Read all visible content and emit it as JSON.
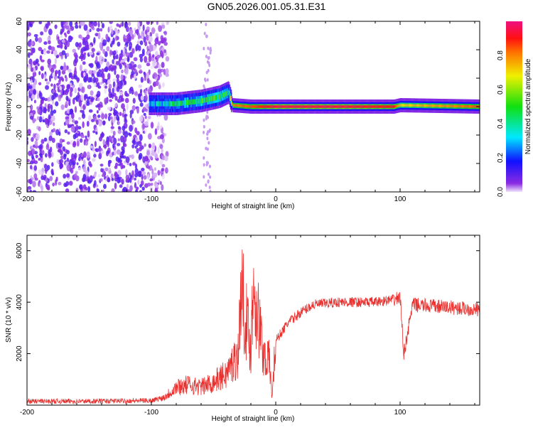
{
  "title": "GN05.2026.001.05.31.E31",
  "chart_data": [
    {
      "type": "heatmap",
      "title": "GN05.2026.001.05.31.E31",
      "xlabel": "Height of straight line (km)",
      "ylabel": "Frequency (Hz)",
      "xlim": [
        -200,
        164
      ],
      "ylim": [
        -60,
        60
      ],
      "xticks": [
        "-200",
        "-100",
        "0",
        "100"
      ],
      "yticks": [
        "-60",
        "-40",
        "-20",
        "0",
        "20",
        "40",
        "60"
      ],
      "colorbar": {
        "label": "Normalized spectral amplitude",
        "range": [
          0,
          1
        ],
        "ticks": [
          "0.0",
          "0.2",
          "0.4",
          "0.6",
          "0.8"
        ]
      },
      "noise_region_x": [
        -200,
        -95
      ],
      "ridge": {
        "x": [
          -100,
          -80,
          -60,
          -45,
          -38,
          -35,
          -20,
          0,
          50,
          95,
          100,
          164
        ],
        "freq_hz": [
          2,
          2,
          4,
          7,
          10,
          1,
          0,
          0,
          0,
          0,
          1,
          0
        ],
        "amplitude": [
          0.3,
          0.4,
          0.45,
          0.5,
          0.4,
          0.8,
          0.85,
          0.95,
          0.95,
          0.9,
          0.7,
          0.85
        ]
      }
    },
    {
      "type": "line",
      "xlabel": "Height of straight line (km)",
      "ylabel": "SNR (10 * v/v)",
      "xlim": [
        -200,
        164
      ],
      "ylim": [
        0,
        6600
      ],
      "xticks": [
        "-200",
        "-100",
        "0",
        "100"
      ],
      "yticks": [
        "2000",
        "4000",
        "6000"
      ],
      "series": [
        {
          "name": "SNR",
          "color": "#e8312f",
          "x": [
            -200,
            -150,
            -100,
            -90,
            -80,
            -70,
            -60,
            -50,
            -40,
            -30,
            -28,
            -20,
            -18,
            -10,
            -5,
            -3,
            0,
            10,
            20,
            30,
            50,
            80,
            95,
            100,
            103,
            110,
            140,
            164
          ],
          "y": [
            150,
            150,
            180,
            300,
            700,
            800,
            700,
            900,
            1200,
            2000,
            4600,
            2200,
            4750,
            2000,
            1700,
            300,
            2500,
            3200,
            3600,
            3900,
            4000,
            4000,
            4100,
            4200,
            2000,
            3900,
            3800,
            3700
          ]
        }
      ]
    }
  ]
}
